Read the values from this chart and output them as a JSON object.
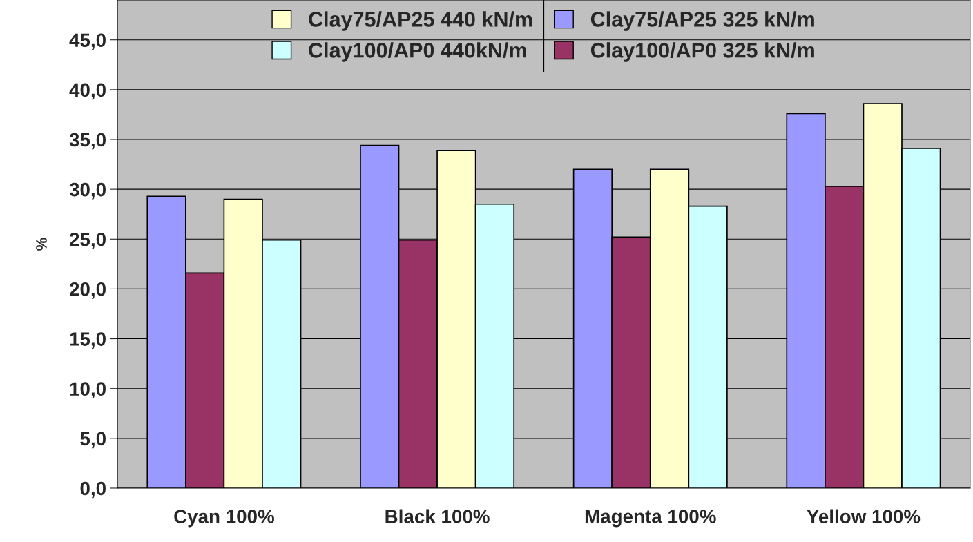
{
  "chart_data": {
    "type": "bar",
    "ylabel": "%",
    "categories": [
      "Cyan 100%",
      "Black 100%",
      "Magenta 100%",
      "Yellow 100%"
    ],
    "series": [
      {
        "name": "Clay75/AP25 325 kN/m",
        "color": "#9999ff",
        "values": [
          29.3,
          34.4,
          32.0,
          37.6
        ]
      },
      {
        "name": "Clay100/AP0 325 kN/m",
        "color": "#993366",
        "values": [
          21.6,
          24.9,
          25.2,
          30.3
        ]
      },
      {
        "name": "Clay75/AP25 440 kN/m",
        "color": "#ffffcc",
        "values": [
          29.0,
          33.9,
          32.0,
          38.6
        ]
      },
      {
        "name": "Clay100/AP0 440kN/m",
        "color": "#ccffff",
        "values": [
          24.9,
          28.5,
          28.3,
          34.1
        ]
      }
    ],
    "ylim": [
      0,
      49
    ],
    "yticks": [
      {
        "value": 0,
        "label": "0,0"
      },
      {
        "value": 5,
        "label": "5,0"
      },
      {
        "value": 10,
        "label": "10,0"
      },
      {
        "value": 15,
        "label": "15,0"
      },
      {
        "value": 20,
        "label": "20,0"
      },
      {
        "value": 25,
        "label": "25,0"
      },
      {
        "value": 30,
        "label": "30,0"
      },
      {
        "value": 35,
        "label": "35,0"
      },
      {
        "value": 40,
        "label": "40,0"
      },
      {
        "value": 45,
        "label": "45,0"
      }
    ],
    "grid": "y",
    "legend": "top"
  }
}
